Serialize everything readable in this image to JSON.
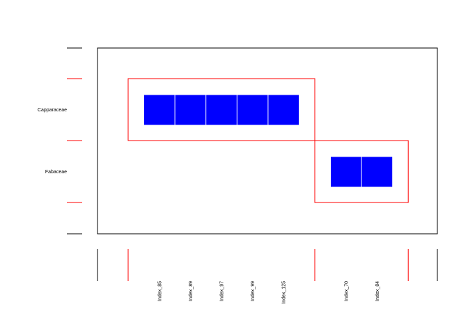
{
  "chart_data": {
    "type": "heatmap",
    "rows": [
      "Capparaceae",
      "Fabaceae"
    ],
    "columns": [
      "Index_85",
      "Index_89",
      "Index_97",
      "Index_99",
      "Index_125",
      "Index_70",
      "Index_84"
    ],
    "groups": [
      {
        "row": "Capparaceae",
        "columns": [
          "Index_85",
          "Index_89",
          "Index_97",
          "Index_99",
          "Index_125"
        ]
      },
      {
        "row": "Fabaceae",
        "columns": [
          "Index_70",
          "Index_84"
        ]
      }
    ],
    "cells": [
      {
        "row": "Capparaceae",
        "column": "Index_85",
        "value": 1
      },
      {
        "row": "Capparaceae",
        "column": "Index_89",
        "value": 1
      },
      {
        "row": "Capparaceae",
        "column": "Index_97",
        "value": 1
      },
      {
        "row": "Capparaceae",
        "column": "Index_99",
        "value": 1
      },
      {
        "row": "Capparaceae",
        "column": "Index_125",
        "value": 1
      },
      {
        "row": "Fabaceae",
        "column": "Index_70",
        "value": 1
      },
      {
        "row": "Fabaceae",
        "column": "Index_84",
        "value": 1
      }
    ],
    "colors": {
      "cell": "#0000ff",
      "group_border": "#ff0000",
      "frame": "#000000"
    },
    "grid": false,
    "legend": "none"
  }
}
